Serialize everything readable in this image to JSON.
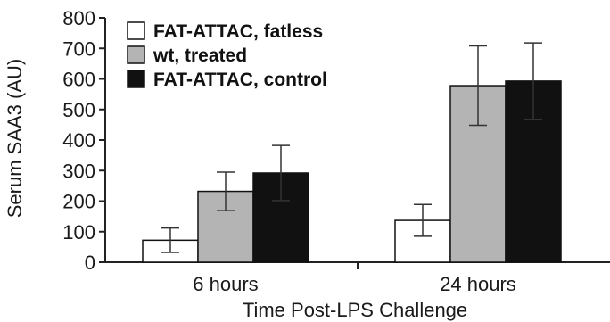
{
  "chart_data": {
    "type": "bar",
    "title": "",
    "xlabel": "Time Post-LPS Challenge",
    "ylabel": "Serum SAA3 (AU)",
    "categories": [
      "6 hours",
      "24 hours"
    ],
    "ylim": [
      0,
      800
    ],
    "yticks": [
      0,
      100,
      200,
      300,
      400,
      500,
      600,
      700,
      800
    ],
    "series": [
      {
        "name": "FAT-ATTAC, fatless",
        "color": "#ffffff",
        "values": [
          72,
          137
        ],
        "errors": [
          40,
          52
        ]
      },
      {
        "name": "wt, treated",
        "color": "#b4b4b4",
        "values": [
          232,
          578
        ],
        "errors": [
          63,
          130
        ]
      },
      {
        "name": "FAT-ATTAC, control",
        "color": "#111111",
        "values": [
          292,
          593
        ],
        "errors": [
          90,
          125
        ]
      }
    ],
    "legend_position": "top-left",
    "grid": false
  }
}
